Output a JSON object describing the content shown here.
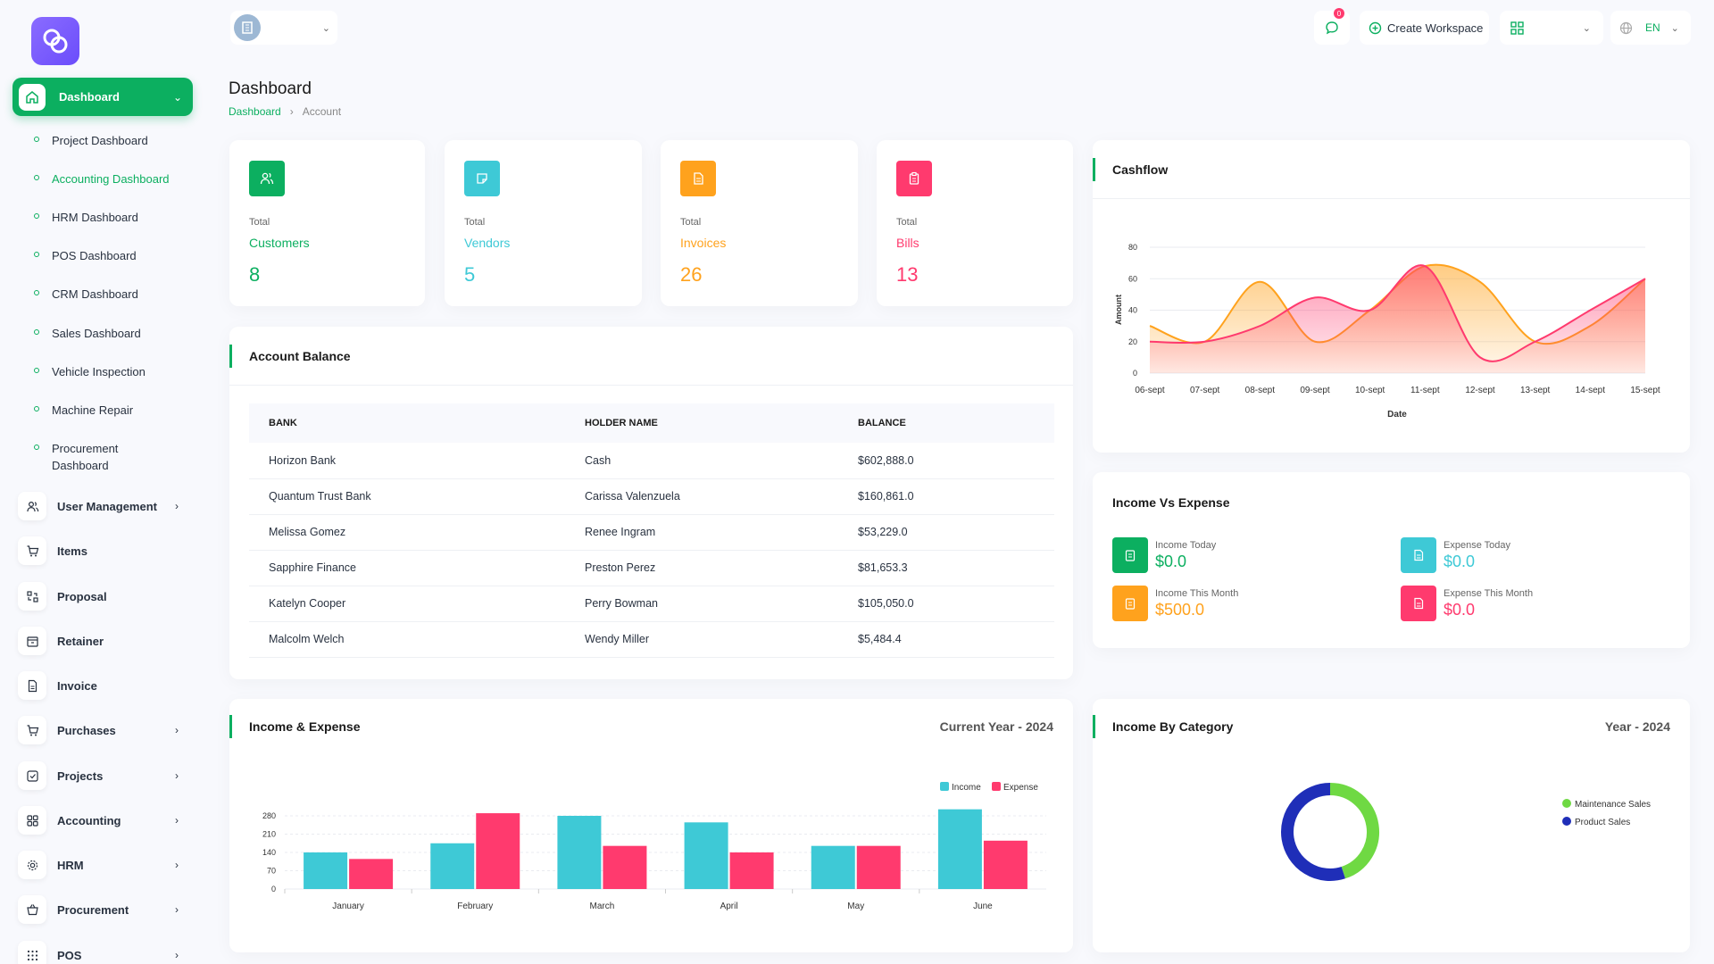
{
  "sidebar": {
    "active": {
      "label": "Dashboard"
    },
    "subitems": [
      {
        "label": "Project Dashboard"
      },
      {
        "label": "Accounting Dashboard"
      },
      {
        "label": "HRM Dashboard"
      },
      {
        "label": "POS Dashboard"
      },
      {
        "label": "CRM Dashboard"
      },
      {
        "label": "Sales Dashboard"
      },
      {
        "label": "Vehicle Inspection"
      },
      {
        "label": "Machine Repair"
      },
      {
        "label": "Procurement Dashboard"
      }
    ],
    "menu": [
      {
        "label": "User Management",
        "icon": "users-icon",
        "chevron": true
      },
      {
        "label": "Items",
        "icon": "cart-icon",
        "chevron": false
      },
      {
        "label": "Proposal",
        "icon": "swap-icon",
        "chevron": false
      },
      {
        "label": "Retainer",
        "icon": "box-icon",
        "chevron": false
      },
      {
        "label": "Invoice",
        "icon": "file-icon",
        "chevron": false
      },
      {
        "label": "Purchases",
        "icon": "cart-icon",
        "chevron": true
      },
      {
        "label": "Projects",
        "icon": "checkbox-icon",
        "chevron": true
      },
      {
        "label": "Accounting",
        "icon": "grid-icon",
        "chevron": true
      },
      {
        "label": "HRM",
        "icon": "gear-icon",
        "chevron": true
      },
      {
        "label": "Procurement",
        "icon": "basket-icon",
        "chevron": true
      },
      {
        "label": "POS",
        "icon": "dots-icon",
        "chevron": true
      }
    ]
  },
  "topbar": {
    "notification_count": "0",
    "create_workspace": "Create Workspace",
    "language": "EN"
  },
  "header": {
    "title": "Dashboard",
    "breadcrumb": [
      "Dashboard",
      "Account"
    ]
  },
  "stats": [
    {
      "total": "Total",
      "name": "Customers",
      "value": "8",
      "color": "#0caf60"
    },
    {
      "total": "Total",
      "name": "Vendors",
      "value": "5",
      "color": "#3ec9d6"
    },
    {
      "total": "Total",
      "name": "Invoices",
      "value": "26",
      "color": "#ffa21d"
    },
    {
      "total": "Total",
      "name": "Bills",
      "value": "13",
      "color": "#ff3a6e"
    }
  ],
  "account_balance": {
    "title": "Account Balance",
    "columns": [
      "BANK",
      "HOLDER NAME",
      "BALANCE"
    ],
    "rows": [
      [
        "Horizon Bank",
        "Cash",
        "$602,888.0"
      ],
      [
        "Quantum Trust Bank",
        "Carissa Valenzuela",
        "$160,861.0"
      ],
      [
        "Melissa Gomez",
        "Renee Ingram",
        "$53,229.0"
      ],
      [
        "Sapphire Finance",
        "Preston Perez",
        "$81,653.3"
      ],
      [
        "Katelyn Cooper",
        "Perry Bowman",
        "$105,050.0"
      ],
      [
        "Malcolm Welch",
        "Wendy Miller",
        "$5,484.4"
      ]
    ]
  },
  "cashflow": {
    "title": "Cashflow"
  },
  "income_vs_expense": {
    "title": "Income Vs Expense",
    "items": [
      {
        "label": "Income Today",
        "value": "$0.0",
        "color": "#0caf60"
      },
      {
        "label": "Expense Today",
        "value": "$0.0",
        "color": "#3ec9d6"
      },
      {
        "label": "Income This Month",
        "value": "$500.0",
        "color": "#ffa21d"
      },
      {
        "label": "Expense This Month",
        "value": "$0.0",
        "color": "#ff3a6e"
      }
    ]
  },
  "income_expense": {
    "title": "Income & Expense",
    "subtitle": "Current Year - 2024"
  },
  "income_category": {
    "title": "Income By Category",
    "subtitle": "Year - 2024"
  },
  "chart_data": [
    {
      "type": "area",
      "x": [
        "06-sept",
        "07-sept",
        "08-sept",
        "09-sept",
        "10-sept",
        "11-sept",
        "12-sept",
        "13-sept",
        "14-sept",
        "15-sept"
      ],
      "series": [
        {
          "values": [
            30,
            20,
            58,
            20,
            40,
            68,
            58,
            20,
            30,
            60
          ],
          "color": "#ffa21d"
        },
        {
          "values": [
            20,
            20,
            30,
            48,
            40,
            68,
            10,
            20,
            40,
            60
          ],
          "color": "#ff3a6e"
        }
      ],
      "xlabel": "Date",
      "ylabel": "Amount",
      "ylim": [
        0,
        80
      ],
      "yticks": [
        0,
        20,
        40,
        60,
        80
      ],
      "grid": true
    },
    {
      "type": "bar",
      "categories": [
        "January",
        "February",
        "March",
        "April",
        "May",
        "June"
      ],
      "series": [
        {
          "name": "Income",
          "values": [
            140,
            175,
            280,
            255,
            165,
            305
          ],
          "color": "#3ec9d6"
        },
        {
          "name": "Expense",
          "values": [
            115,
            290,
            165,
            140,
            165,
            185
          ],
          "color": "#ff3a6e"
        }
      ],
      "ylim": [
        0,
        280
      ],
      "yticks": [
        0,
        70,
        140,
        210,
        280
      ],
      "legend": "top-right"
    },
    {
      "type": "pie",
      "categories": [
        "Maintenance Sales",
        "Product Sales"
      ],
      "values": [
        45,
        55
      ],
      "colors": [
        "#6fd943",
        "#1f2eb8"
      ],
      "legend": "right"
    }
  ]
}
